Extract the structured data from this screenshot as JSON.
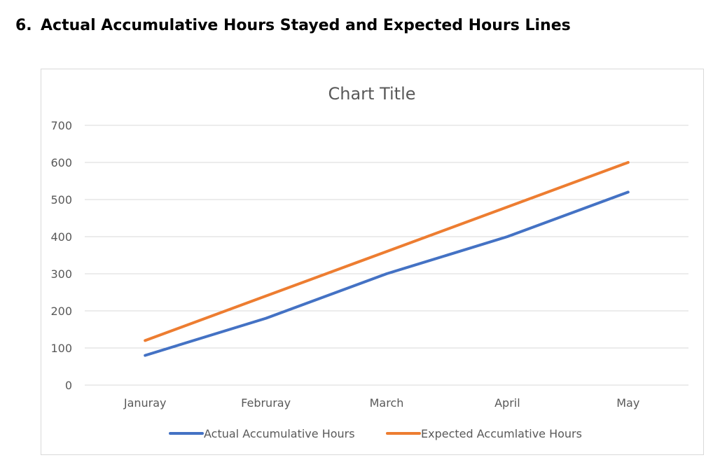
{
  "document": {
    "section_number": "6.",
    "section_title": "Actual Accumulative Hours Stayed and Expected Hours Lines"
  },
  "chart_data": {
    "type": "line",
    "title": "Chart Title",
    "categories": [
      "Januray",
      "Februray",
      "March",
      "April",
      "May"
    ],
    "series": [
      {
        "name": "Actual Accumulative Hours",
        "color": "#4472c4",
        "values": [
          80,
          180,
          300,
          400,
          520
        ]
      },
      {
        "name": "Expected Accumlative Hours",
        "color": "#ed7d31",
        "values": [
          120,
          240,
          360,
          480,
          600
        ]
      }
    ],
    "ylim": [
      0,
      700
    ],
    "yticks": [
      0,
      100,
      200,
      300,
      400,
      500,
      600,
      700
    ],
    "grid": true,
    "legend_position": "bottom",
    "xlabel": "",
    "ylabel": ""
  }
}
